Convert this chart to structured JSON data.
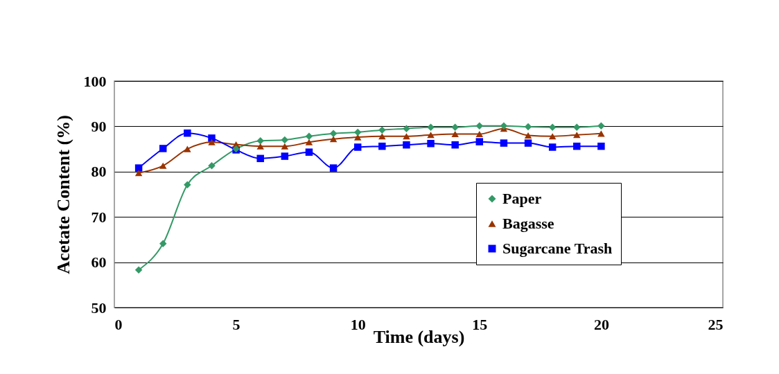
{
  "chart_data": {
    "type": "line",
    "xlabel": "Time (days)",
    "ylabel": "Acetate Content (%)",
    "x": [
      1,
      2,
      3,
      4,
      5,
      6,
      7,
      8,
      9,
      10,
      11,
      12,
      13,
      14,
      15,
      16,
      17,
      18,
      19,
      20
    ],
    "xlim": [
      0,
      25
    ],
    "xticks": [
      0,
      5,
      10,
      15,
      20,
      25
    ],
    "ylim": [
      50,
      100
    ],
    "yticks": [
      50,
      60,
      70,
      80,
      90,
      100
    ],
    "grid": "y",
    "legend": "bottom right",
    "series": [
      {
        "name": "Paper",
        "color": "#339966",
        "marker": "diamond",
        "values": [
          58.3,
          64.1,
          77.1,
          81.3,
          85.0,
          86.8,
          87.0,
          87.8,
          88.4,
          88.7,
          89.2,
          89.5,
          89.8,
          89.8,
          90.1,
          90.1,
          89.9,
          89.8,
          89.8,
          90.1
        ]
      },
      {
        "name": "Bagasse",
        "color": "#993300",
        "marker": "triangle",
        "values": [
          79.7,
          81.3,
          85.0,
          86.5,
          86.0,
          85.6,
          85.6,
          86.5,
          87.2,
          87.6,
          87.8,
          87.8,
          88.1,
          88.3,
          88.3,
          89.5,
          88.0,
          87.8,
          88.1,
          88.4
        ]
      },
      {
        "name": "Sugarcane Trash",
        "color": "#0000ff",
        "marker": "square",
        "values": [
          80.8,
          85.1,
          88.5,
          87.4,
          84.8,
          82.9,
          83.4,
          84.3,
          80.8,
          85.4,
          85.6,
          85.9,
          86.2,
          85.9,
          86.6,
          86.3,
          86.3,
          85.4,
          85.6,
          85.6
        ]
      }
    ]
  }
}
